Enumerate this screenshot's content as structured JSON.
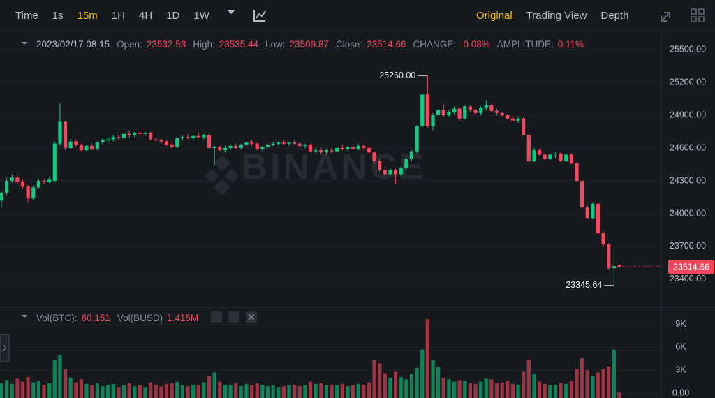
{
  "toolbar": {
    "intervals": [
      "Time",
      "1s",
      "15m",
      "1H",
      "4H",
      "1D",
      "1W"
    ],
    "views": [
      "Original",
      "Trading View",
      "Depth"
    ]
  },
  "chart_data": {
    "type": "candlestick",
    "watermark": "BINANCE",
    "datetime": "2023/02/17 08:15",
    "info_labels": {
      "open": "Open:",
      "high": "High:",
      "low": "Low:",
      "close": "Close:",
      "change": "CHANGE:",
      "amplitude": "AMPLITUDE:"
    },
    "change": {
      "value": -0.08,
      "label": "-0.08%"
    },
    "amplitude": {
      "value": 0.11,
      "label": "0.11%"
    },
    "up_color": "#0ecb81",
    "down_color": "#f6465d",
    "ylim": [
      23157,
      25647
    ],
    "yticks": [
      {
        "value": 25500,
        "label": "25500.00"
      },
      {
        "value": 25200,
        "label": "25200.00"
      },
      {
        "value": 24900,
        "label": "24900.00"
      },
      {
        "value": 24600,
        "label": "24600.00"
      },
      {
        "value": 24300,
        "label": "24300.00"
      },
      {
        "value": 24000,
        "label": "24000.00"
      },
      {
        "value": 23700,
        "label": "23700.00"
      },
      {
        "value": 23400,
        "label": "23400.00"
      }
    ],
    "max_label": {
      "value": 25260,
      "label": "25260.00"
    },
    "min_label": {
      "value": 23345.64,
      "label": "23345.64"
    },
    "candles": [
      {
        "open": 24120,
        "high": 24210,
        "low": 24060,
        "close": 24190,
        "volume": 1300
      },
      {
        "open": 24190,
        "high": 24330,
        "low": 24170,
        "close": 24300,
        "volume": 1700
      },
      {
        "open": 24300,
        "high": 24360,
        "low": 24280,
        "close": 24330,
        "volume": 1200
      },
      {
        "open": 24330,
        "high": 24350,
        "low": 24270,
        "close": 24290,
        "volume": 1900
      },
      {
        "open": 24290,
        "high": 24310,
        "low": 24230,
        "close": 24250,
        "volume": 1500
      },
      {
        "open": 24250,
        "high": 24260,
        "low": 24100,
        "close": 24140,
        "volume": 2100
      },
      {
        "open": 24140,
        "high": 24260,
        "low": 24120,
        "close": 24240,
        "volume": 1400
      },
      {
        "open": 24240,
        "high": 24320,
        "low": 24230,
        "close": 24300,
        "volume": 1600
      },
      {
        "open": 24300,
        "high": 24320,
        "low": 24270,
        "close": 24290,
        "volume": 1100
      },
      {
        "open": 24290,
        "high": 24330,
        "low": 24280,
        "close": 24310,
        "volume": 1300
      },
      {
        "open": 24300,
        "high": 24660,
        "low": 24290,
        "close": 24640,
        "volume": 4300
      },
      {
        "open": 24640,
        "high": 25010,
        "low": 24620,
        "close": 24840,
        "volume": 5000
      },
      {
        "open": 24840,
        "high": 24850,
        "low": 24580,
        "close": 24600,
        "volume": 3200
      },
      {
        "open": 24600,
        "high": 24690,
        "low": 24590,
        "close": 24660,
        "volume": 2000
      },
      {
        "open": 24660,
        "high": 24680,
        "low": 24610,
        "close": 24630,
        "volume": 1400
      },
      {
        "open": 24630,
        "high": 24640,
        "low": 24570,
        "close": 24580,
        "volume": 1800
      },
      {
        "open": 24580,
        "high": 24630,
        "low": 24570,
        "close": 24620,
        "volume": 1200
      },
      {
        "open": 24620,
        "high": 24640,
        "low": 24580,
        "close": 24590,
        "volume": 1000
      },
      {
        "open": 24590,
        "high": 24660,
        "low": 24580,
        "close": 24650,
        "volume": 1300
      },
      {
        "open": 24650,
        "high": 24690,
        "low": 24630,
        "close": 24670,
        "volume": 900
      },
      {
        "open": 24670,
        "high": 24700,
        "low": 24650,
        "close": 24680,
        "volume": 1100
      },
      {
        "open": 24680,
        "high": 24720,
        "low": 24660,
        "close": 24700,
        "volume": 1200
      },
      {
        "open": 24700,
        "high": 24720,
        "low": 24670,
        "close": 24690,
        "volume": 800
      },
      {
        "open": 24690,
        "high": 24750,
        "low": 24680,
        "close": 24730,
        "volume": 1000
      },
      {
        "open": 24730,
        "high": 24760,
        "low": 24700,
        "close": 24720,
        "volume": 1300
      },
      {
        "open": 24720,
        "high": 24750,
        "low": 24700,
        "close": 24740,
        "volume": 900
      },
      {
        "open": 24740,
        "high": 24760,
        "low": 24710,
        "close": 24730,
        "volume": 1000
      },
      {
        "open": 24730,
        "high": 24750,
        "low": 24710,
        "close": 24740,
        "volume": 800
      },
      {
        "open": 24740,
        "high": 24750,
        "low": 24670,
        "close": 24680,
        "volume": 1400
      },
      {
        "open": 24680,
        "high": 24700,
        "low": 24650,
        "close": 24670,
        "volume": 1100
      },
      {
        "open": 24670,
        "high": 24690,
        "low": 24640,
        "close": 24660,
        "volume": 900
      },
      {
        "open": 24660,
        "high": 24670,
        "low": 24620,
        "close": 24630,
        "volume": 1200
      },
      {
        "open": 24630,
        "high": 24650,
        "low": 24600,
        "close": 24610,
        "volume": 1300
      },
      {
        "open": 24610,
        "high": 24700,
        "low": 24600,
        "close": 24690,
        "volume": 1500
      },
      {
        "open": 24690,
        "high": 24710,
        "low": 24670,
        "close": 24700,
        "volume": 1000
      },
      {
        "open": 24700,
        "high": 24730,
        "low": 24680,
        "close": 24690,
        "volume": 900
      },
      {
        "open": 24690,
        "high": 24720,
        "low": 24670,
        "close": 24710,
        "volume": 1100
      },
      {
        "open": 24710,
        "high": 24740,
        "low": 24690,
        "close": 24700,
        "volume": 1000
      },
      {
        "open": 24700,
        "high": 24730,
        "low": 24680,
        "close": 24720,
        "volume": 1400
      },
      {
        "open": 24720,
        "high": 24730,
        "low": 24590,
        "close": 24600,
        "volume": 2200
      },
      {
        "open": 24600,
        "high": 24620,
        "low": 24440,
        "close": 24610,
        "volume": 2700
      },
      {
        "open": 24610,
        "high": 24620,
        "low": 24570,
        "close": 24580,
        "volume": 1500
      },
      {
        "open": 24580,
        "high": 24620,
        "low": 24560,
        "close": 24600,
        "volume": 1100
      },
      {
        "open": 24600,
        "high": 24630,
        "low": 24580,
        "close": 24620,
        "volume": 1000
      },
      {
        "open": 24620,
        "high": 24640,
        "low": 24590,
        "close": 24600,
        "volume": 1300
      },
      {
        "open": 24600,
        "high": 24640,
        "low": 24590,
        "close": 24630,
        "volume": 900
      },
      {
        "open": 24630,
        "high": 24660,
        "low": 24620,
        "close": 24650,
        "volume": 1200
      },
      {
        "open": 24650,
        "high": 24670,
        "low": 24620,
        "close": 24640,
        "volume": 1000
      },
      {
        "open": 24640,
        "high": 24650,
        "low": 24580,
        "close": 24590,
        "volume": 1300
      },
      {
        "open": 24590,
        "high": 24620,
        "low": 24570,
        "close": 24610,
        "volume": 1100
      },
      {
        "open": 24610,
        "high": 24640,
        "low": 24600,
        "close": 24630,
        "volume": 900
      },
      {
        "open": 24630,
        "high": 24660,
        "low": 24620,
        "close": 24640,
        "volume": 1000
      },
      {
        "open": 24640,
        "high": 24660,
        "low": 24620,
        "close": 24650,
        "volume": 800
      },
      {
        "open": 24650,
        "high": 24670,
        "low": 24630,
        "close": 24640,
        "volume": 900
      },
      {
        "open": 24640,
        "high": 24660,
        "low": 24620,
        "close": 24650,
        "volume": 1000
      },
      {
        "open": 24650,
        "high": 24670,
        "low": 24630,
        "close": 24640,
        "volume": 1100
      },
      {
        "open": 24640,
        "high": 24650,
        "low": 24610,
        "close": 24620,
        "volume": 900
      },
      {
        "open": 24620,
        "high": 24640,
        "low": 24600,
        "close": 24630,
        "volume": 1000
      },
      {
        "open": 24630,
        "high": 24640,
        "low": 24560,
        "close": 24570,
        "volume": 1500
      },
      {
        "open": 24570,
        "high": 24600,
        "low": 24550,
        "close": 24580,
        "volume": 1200
      },
      {
        "open": 24580,
        "high": 24600,
        "low": 24540,
        "close": 24560,
        "volume": 1300
      },
      {
        "open": 24560,
        "high": 24590,
        "low": 24540,
        "close": 24580,
        "volume": 1000
      },
      {
        "open": 24580,
        "high": 24600,
        "low": 24550,
        "close": 24570,
        "volume": 1100
      },
      {
        "open": 24570,
        "high": 24610,
        "low": 24560,
        "close": 24600,
        "volume": 1000
      },
      {
        "open": 24600,
        "high": 24630,
        "low": 24580,
        "close": 24590,
        "volume": 1200
      },
      {
        "open": 24590,
        "high": 24620,
        "low": 24570,
        "close": 24610,
        "volume": 900
      },
      {
        "open": 24610,
        "high": 24630,
        "low": 24580,
        "close": 24590,
        "volume": 1000
      },
      {
        "open": 24590,
        "high": 24640,
        "low": 24580,
        "close": 24620,
        "volume": 1200
      },
      {
        "open": 24620,
        "high": 24630,
        "low": 24580,
        "close": 24600,
        "volume": 1100
      },
      {
        "open": 24600,
        "high": 24620,
        "low": 24540,
        "close": 24560,
        "volume": 1400
      },
      {
        "open": 24560,
        "high": 24570,
        "low": 24460,
        "close": 24480,
        "volume": 4300
      },
      {
        "open": 24480,
        "high": 24500,
        "low": 24380,
        "close": 24400,
        "volume": 3900
      },
      {
        "open": 24400,
        "high": 24430,
        "low": 24340,
        "close": 24360,
        "volume": 2600
      },
      {
        "open": 24360,
        "high": 24420,
        "low": 24350,
        "close": 24400,
        "volume": 2000
      },
      {
        "open": 24400,
        "high": 24410,
        "low": 24270,
        "close": 24360,
        "volume": 2800
      },
      {
        "open": 24360,
        "high": 24430,
        "low": 24340,
        "close": 24420,
        "volume": 2100
      },
      {
        "open": 24420,
        "high": 24510,
        "low": 24400,
        "close": 24500,
        "volume": 1800
      },
      {
        "open": 24500,
        "high": 24580,
        "low": 24480,
        "close": 24570,
        "volume": 2500
      },
      {
        "open": 24570,
        "high": 24810,
        "low": 24550,
        "close": 24800,
        "volume": 3300
      },
      {
        "open": 24800,
        "high": 25100,
        "low": 24790,
        "close": 25090,
        "volume": 5700
      },
      {
        "open": 25090,
        "high": 25260,
        "low": 24780,
        "close": 24800,
        "volume": 9700
      },
      {
        "open": 24800,
        "high": 24920,
        "low": 24760,
        "close": 24900,
        "volume": 4300
      },
      {
        "open": 24900,
        "high": 24970,
        "low": 24880,
        "close": 24950,
        "volume": 3400
      },
      {
        "open": 24950,
        "high": 25000,
        "low": 24880,
        "close": 24900,
        "volume": 2000
      },
      {
        "open": 24900,
        "high": 24950,
        "low": 24880,
        "close": 24930,
        "volume": 1800
      },
      {
        "open": 24930,
        "high": 24980,
        "low": 24910,
        "close": 24960,
        "volume": 1500
      },
      {
        "open": 24960,
        "high": 24970,
        "low": 24850,
        "close": 24870,
        "volume": 1700
      },
      {
        "open": 24870,
        "high": 24990,
        "low": 24860,
        "close": 24980,
        "volume": 1600
      },
      {
        "open": 24980,
        "high": 24990,
        "low": 24930,
        "close": 24950,
        "volume": 1300
      },
      {
        "open": 24950,
        "high": 24970,
        "low": 24910,
        "close": 24920,
        "volume": 1200
      },
      {
        "open": 24920,
        "high": 24980,
        "low": 24900,
        "close": 24970,
        "volume": 1500
      },
      {
        "open": 24970,
        "high": 25040,
        "low": 24950,
        "close": 24990,
        "volume": 1900
      },
      {
        "open": 24990,
        "high": 25000,
        "low": 24930,
        "close": 24940,
        "volume": 1800
      },
      {
        "open": 24940,
        "high": 24960,
        "low": 24900,
        "close": 24920,
        "volume": 1300
      },
      {
        "open": 24920,
        "high": 24930,
        "low": 24880,
        "close": 24900,
        "volume": 1400
      },
      {
        "open": 24900,
        "high": 24910,
        "low": 24860,
        "close": 24870,
        "volume": 1600
      },
      {
        "open": 24870,
        "high": 24900,
        "low": 24840,
        "close": 24850,
        "volume": 1200
      },
      {
        "open": 24850,
        "high": 24890,
        "low": 24830,
        "close": 24870,
        "volume": 1100
      },
      {
        "open": 24870,
        "high": 24880,
        "low": 24710,
        "close": 24720,
        "volume": 2800
      },
      {
        "open": 24720,
        "high": 24730,
        "low": 24470,
        "close": 24480,
        "volume": 4400
      },
      {
        "open": 24480,
        "high": 24600,
        "low": 24470,
        "close": 24580,
        "volume": 2500
      },
      {
        "open": 24580,
        "high": 24590,
        "low": 24530,
        "close": 24540,
        "volume": 1500
      },
      {
        "open": 24540,
        "high": 24560,
        "low": 24490,
        "close": 24500,
        "volume": 1200
      },
      {
        "open": 24500,
        "high": 24550,
        "low": 24490,
        "close": 24540,
        "volume": 1000
      },
      {
        "open": 24540,
        "high": 24560,
        "low": 24510,
        "close": 24550,
        "volume": 1100
      },
      {
        "open": 24550,
        "high": 24560,
        "low": 24470,
        "close": 24480,
        "volume": 1300
      },
      {
        "open": 24480,
        "high": 24550,
        "low": 24470,
        "close": 24540,
        "volume": 1200
      },
      {
        "open": 24540,
        "high": 24550,
        "low": 24450,
        "close": 24460,
        "volume": 1600
      },
      {
        "open": 24460,
        "high": 24470,
        "low": 24290,
        "close": 24300,
        "volume": 3200
      },
      {
        "open": 24300,
        "high": 24310,
        "low": 24050,
        "close": 24060,
        "volume": 4600
      },
      {
        "open": 24060,
        "high": 24080,
        "low": 23950,
        "close": 23960,
        "volume": 3000
      },
      {
        "open": 23960,
        "high": 24100,
        "low": 23950,
        "close": 24090,
        "volume": 2200
      },
      {
        "open": 24090,
        "high": 24100,
        "low": 23810,
        "close": 23820,
        "volume": 2700
      },
      {
        "open": 23820,
        "high": 23840,
        "low": 23700,
        "close": 23720,
        "volume": 3200
      },
      {
        "open": 23720,
        "high": 23730,
        "low": 23490,
        "close": 23500,
        "volume": 3500
      },
      {
        "open": 23500,
        "high": 23690,
        "low": 23345.64,
        "close": 23520,
        "volume": 5700
      },
      {
        "open": 23532.53,
        "high": 23535.44,
        "low": 23509.87,
        "close": 23514.66,
        "volume": 60.151
      }
    ],
    "volume": {
      "labels": [
        "Vol(BTC):",
        "Vol(BUSD)"
      ],
      "busd": {
        "value": 1415000,
        "label": "1.415M"
      },
      "ylim": [
        0,
        10800
      ],
      "yticks": [
        {
          "value": 9000,
          "label": "9K"
        },
        {
          "value": 6000,
          "label": "6K"
        },
        {
          "value": 3000,
          "label": "3K"
        },
        {
          "value": 0,
          "label": "0.00"
        }
      ]
    }
  }
}
